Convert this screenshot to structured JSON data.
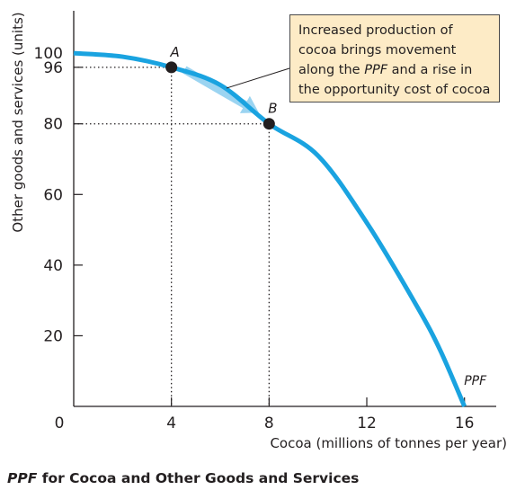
{
  "chart_data": {
    "type": "line",
    "title": "PPF for Cocoa and Other Goods and Services",
    "title_emphasis": "PPF",
    "title_rest": " for Cocoa and Other Goods and Services",
    "xlabel": "Cocoa (millions of tonnes per year)",
    "ylabel": "Other goods and services (units)",
    "xlim": [
      0,
      17.3
    ],
    "ylim": [
      0,
      112
    ],
    "x_ticks": [
      {
        "value": 4,
        "label": "4"
      },
      {
        "value": 8,
        "label": "8"
      },
      {
        "value": 12,
        "label": "12"
      },
      {
        "value": 16,
        "label": "16"
      }
    ],
    "y_ticks": [
      {
        "value": 20,
        "label": "20"
      },
      {
        "value": 40,
        "label": "40"
      },
      {
        "value": 60,
        "label": "60"
      },
      {
        "value": 80,
        "label": "80"
      },
      {
        "value": 96,
        "label": "96"
      },
      {
        "value": 100,
        "label": "100"
      }
    ],
    "origin_label": "0",
    "grid": false,
    "series": [
      {
        "name": "PPF",
        "color": "#1aa3e0",
        "x": [
          0,
          2,
          4,
          6,
          8,
          10,
          12,
          14,
          15,
          16
        ],
        "y": [
          100,
          99,
          96,
          91,
          80,
          71,
          52,
          29,
          16,
          0
        ]
      }
    ],
    "points": [
      {
        "label": "A",
        "x": 4,
        "y": 96
      },
      {
        "label": "B",
        "x": 8,
        "y": 80
      }
    ],
    "movement_arrow": {
      "from": "A",
      "to": "B",
      "color": "#9bd4f1"
    },
    "annotation": {
      "line1": "Increased production of",
      "line2": "cocoa brings movement",
      "line3_pre": "along the ",
      "line3_em": "PPF",
      "line3_post": " and a rise in",
      "line4": "the opportunity cost of cocoa",
      "background": "#fdebc6"
    }
  }
}
